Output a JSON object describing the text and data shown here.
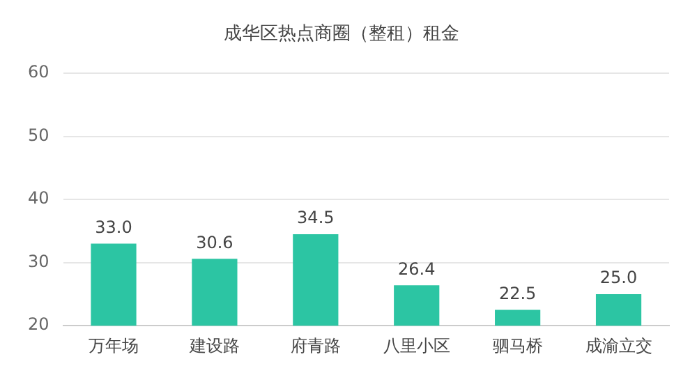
{
  "chart_data": {
    "type": "bar",
    "title": "成华区热点商圈（整租）租金",
    "categories": [
      "万年场",
      "建设路",
      "府青路",
      "八里小区",
      "驷马桥",
      "成渝立交"
    ],
    "values": [
      33.0,
      30.6,
      34.5,
      26.4,
      22.5,
      25.0
    ],
    "value_labels": [
      "33.0",
      "30.6",
      "34.5",
      "26.4",
      "22.5",
      "25.0"
    ],
    "color": "#2cc5a3",
    "ylim": [
      20,
      60
    ],
    "yticks": [
      20,
      30,
      40,
      50,
      60
    ],
    "grid": "y"
  }
}
